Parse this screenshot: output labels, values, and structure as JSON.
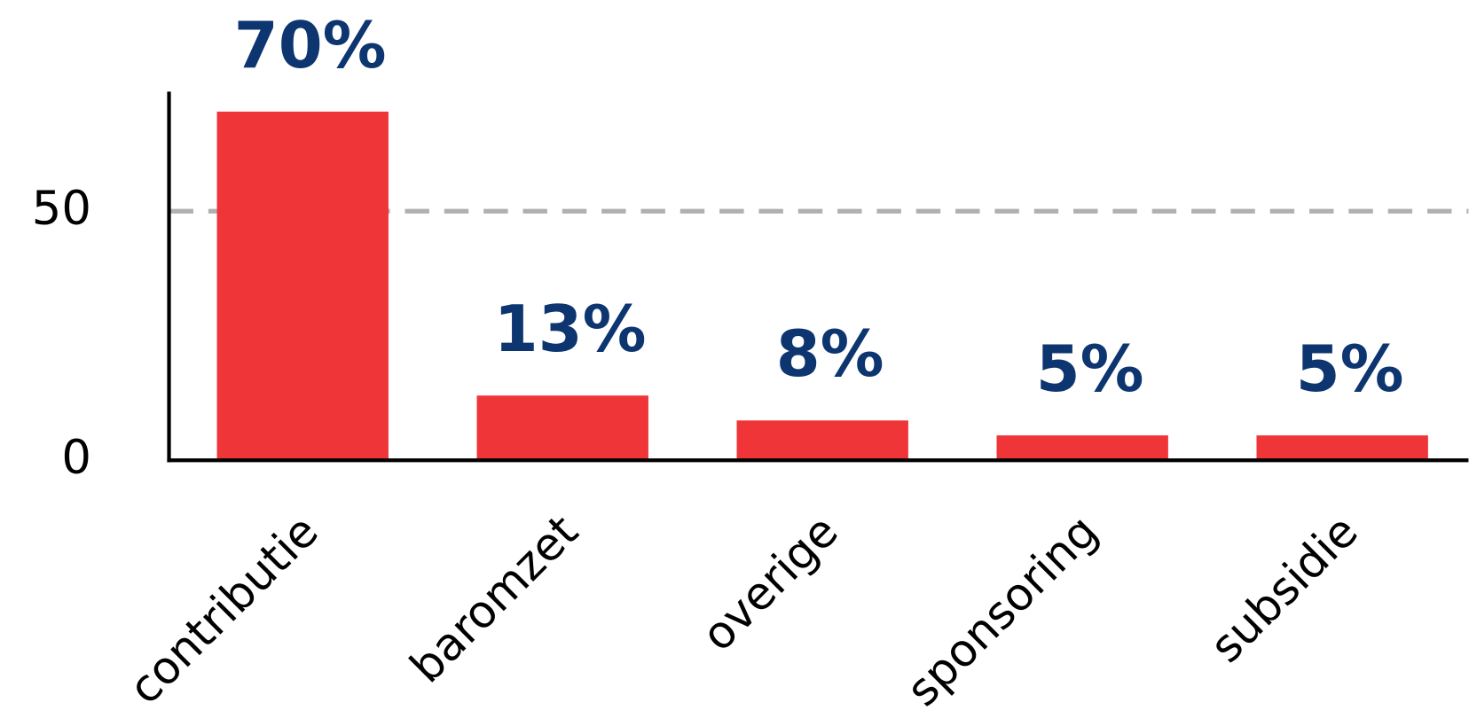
{
  "chart_data": {
    "type": "bar",
    "categories": [
      "contributie",
      "baromzet",
      "overige",
      "sponsoring",
      "subsidie"
    ],
    "values": [
      70,
      13,
      8,
      5,
      5
    ],
    "value_labels": [
      "70%",
      "13%",
      "8%",
      "5%",
      "5%"
    ],
    "color": "#ef3538",
    "ylim": [
      0,
      74
    ],
    "yticks": [
      0,
      50
    ],
    "grid": true
  }
}
